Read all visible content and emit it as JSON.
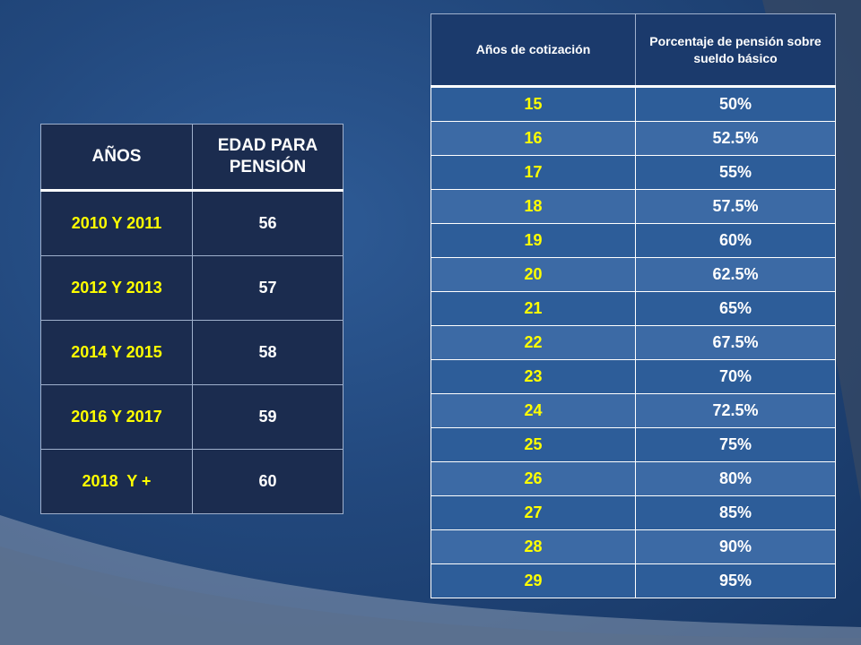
{
  "left_table": {
    "headers": [
      "AÑOS",
      "EDAD PARA PENSIÓN"
    ],
    "rows": [
      {
        "years": "2010 Y 2011",
        "age": "56"
      },
      {
        "years": "2012 Y 2013",
        "age": "57"
      },
      {
        "years": "2014 Y 2015",
        "age": "58"
      },
      {
        "years": "2016 Y 2017",
        "age": "59"
      },
      {
        "years": "2018  Y +",
        "age": "60"
      }
    ]
  },
  "right_table": {
    "headers": [
      "Años de cotización",
      "Porcentaje de pensión sobre sueldo básico"
    ],
    "rows": [
      {
        "years": "15",
        "pct": "50%"
      },
      {
        "years": "16",
        "pct": "52.5%"
      },
      {
        "years": "17",
        "pct": "55%"
      },
      {
        "years": "18",
        "pct": "57.5%"
      },
      {
        "years": "19",
        "pct": "60%"
      },
      {
        "years": "20",
        "pct": "62.5%"
      },
      {
        "years": "21",
        "pct": "65%"
      },
      {
        "years": "22",
        "pct": "67.5%"
      },
      {
        "years": "23",
        "pct": "70%"
      },
      {
        "years": "24",
        "pct": "72.5%"
      },
      {
        "years": "25",
        "pct": "75%"
      },
      {
        "years": "26",
        "pct": "80%"
      },
      {
        "years": "27",
        "pct": "85%"
      },
      {
        "years": "28",
        "pct": "90%"
      },
      {
        "years": "29",
        "pct": "95%"
      }
    ]
  },
  "colors": {
    "background": "#22487d",
    "cell_dark": "#1b2c4f",
    "highlight_text": "#ffff00",
    "body_text": "#ffffff"
  }
}
